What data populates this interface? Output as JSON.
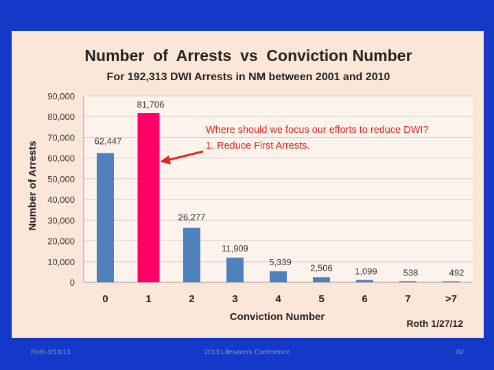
{
  "footer": {
    "left": "Roth 4/14/13",
    "center": "2013 Lifesavers Conference",
    "page_number": "82"
  },
  "colors": {
    "background": "#1438c8",
    "panel": "#fae7d8",
    "bar_default": "#4f81bd",
    "bar_highlight": "#ff0066",
    "annotation": "#e8231e"
  },
  "chart_data": {
    "type": "bar",
    "title": "Number  of  Arrests  vs  Conviction Number",
    "subtitle": "For 192,313 DWI Arrests in NM between 2001 and 2010",
    "xlabel": "Conviction Number",
    "ylabel": "Number of Arrests",
    "ylim": [
      0,
      90000
    ],
    "yticks": [
      0,
      10000,
      20000,
      30000,
      40000,
      50000,
      60000,
      70000,
      80000,
      90000
    ],
    "ytick_labels": [
      "0",
      "10,000",
      "20,000",
      "30,000",
      "40,000",
      "50,000",
      "60,000",
      "70,000",
      "80,000",
      "90,000"
    ],
    "categories": [
      "0",
      "1",
      "2",
      "3",
      "4",
      "5",
      "6",
      "7",
      ">7"
    ],
    "values": [
      62447,
      81706,
      26277,
      11909,
      5339,
      2506,
      1099,
      538,
      492
    ],
    "data_labels": [
      "62,447",
      "81,706",
      "26,277",
      "11,909",
      "5,339",
      "2,506",
      "1,099",
      "538",
      "492"
    ],
    "highlight_index": 1,
    "grid": true,
    "annotation": {
      "line1": "Where should we focus our efforts to reduce DWI?",
      "line2": "1. Reduce First Arrests."
    },
    "credit": "Roth 1/27/12"
  }
}
